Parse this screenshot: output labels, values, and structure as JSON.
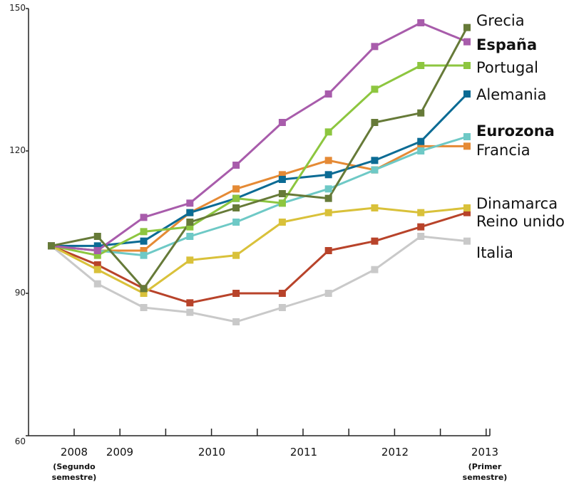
{
  "chart_data": {
    "type": "line",
    "title": "",
    "xlabel": "",
    "ylabel": "",
    "ylim": [
      60,
      150
    ],
    "yticks": [
      60,
      90,
      120,
      150
    ],
    "x_tick_labels": [
      {
        "label": "2008",
        "sub": [
          "(Segundo",
          "semestre)"
        ]
      },
      {
        "label": "2009",
        "sub": []
      },
      {
        "label": "2010",
        "sub": []
      },
      {
        "label": "2011",
        "sub": []
      },
      {
        "label": "2012",
        "sub": []
      },
      {
        "label": "2013",
        "sub": [
          "(Primer",
          "semestre)"
        ]
      }
    ],
    "n_points": 10,
    "grid": false,
    "series": [
      {
        "name": "Grecia",
        "color": "#667a38",
        "bold": false,
        "values": [
          100,
          102,
          91,
          105,
          108,
          111,
          110,
          126,
          128,
          146
        ]
      },
      {
        "name": "España",
        "color": "#a85cab",
        "bold": true,
        "values": [
          100,
          99,
          106,
          109,
          117,
          126,
          132,
          142,
          147,
          143
        ]
      },
      {
        "name": "Portugal",
        "color": "#8dc63f",
        "bold": false,
        "values": [
          100,
          98,
          103,
          104,
          110,
          109,
          124,
          133,
          138,
          138
        ]
      },
      {
        "name": "Alemania",
        "color": "#0b6b94",
        "bold": false,
        "values": [
          100,
          100,
          101,
          107,
          110,
          114,
          115,
          118,
          122,
          132
        ]
      },
      {
        "name": "Eurozona",
        "color": "#6ec9c6",
        "bold": true,
        "values": [
          100,
          99,
          98,
          102,
          105,
          109,
          112,
          116,
          120,
          123
        ]
      },
      {
        "name": "Francia",
        "color": "#e58a35",
        "bold": false,
        "values": [
          100,
          99,
          99,
          107,
          112,
          115,
          118,
          116,
          121,
          121
        ]
      },
      {
        "name": "Dinamarca",
        "color": "#d9c13a",
        "bold": false,
        "values": [
          100,
          95,
          90,
          97,
          98,
          105,
          107,
          108,
          107,
          108
        ]
      },
      {
        "name": "Reino unido",
        "color": "#b8432a",
        "bold": false,
        "values": [
          100,
          96,
          91,
          88,
          90,
          90,
          99,
          101,
          104,
          107
        ]
      },
      {
        "name": "Italia",
        "color": "#c9c9c9",
        "bold": false,
        "values": [
          100,
          92,
          87,
          86,
          84,
          87,
          90,
          95,
          102,
          101
        ]
      }
    ]
  }
}
